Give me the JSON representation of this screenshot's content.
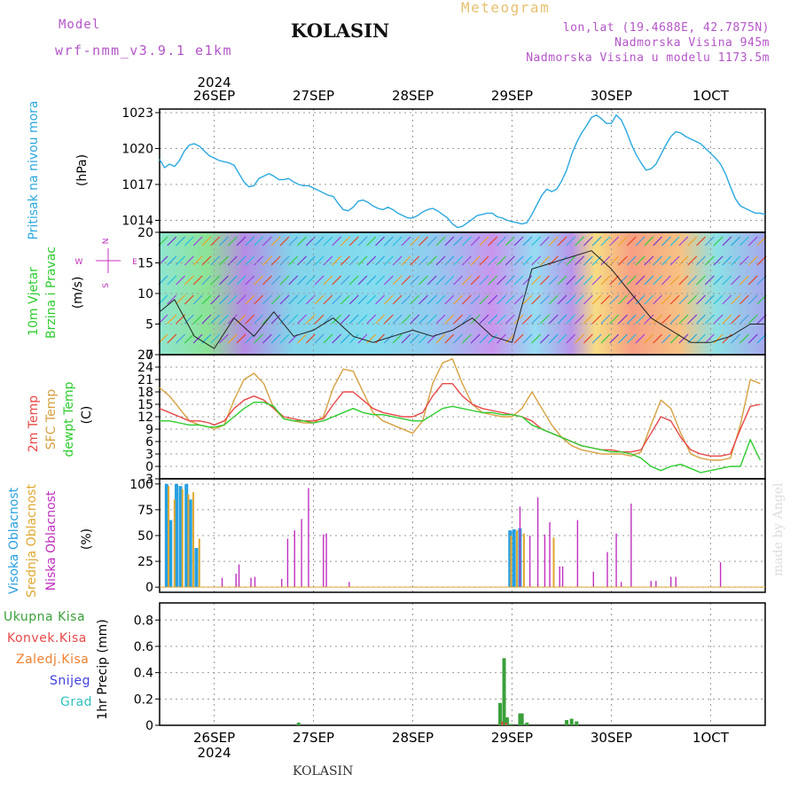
{
  "header": {
    "model_label": "Model",
    "model_value": "wrf-nmm_v3.9.1 e1km",
    "station": "KOLASIN",
    "title": "Meteogram",
    "location_lines": [
      "lon,lat (19.4688E, 42.7875N)",
      "Nadmorska Visina 945m",
      "Nadmorska Visina u modelu 1173.5m"
    ],
    "footer_station": "KOLASIN",
    "credit": "made by Angel"
  },
  "time_axis": {
    "year": "2024",
    "dates": [
      "26SEP",
      "27SEP",
      "28SEP",
      "29SEP",
      "30SEP",
      "1OCT"
    ]
  },
  "colors": {
    "pressure": "#2aa8e0",
    "temp2m": "#e84848",
    "sfc_temp": "#d6a040",
    "dewpt": "#2ecc2e",
    "high_cloud": "#28a0e0",
    "mid_cloud": "#e0a830",
    "low_cloud": "#c030c0",
    "total_precip": "#3aa03a",
    "conv_precip": "#e84848",
    "frz_precip": "#f08030",
    "snow": "#4040e0",
    "hail": "#30c0c0"
  },
  "panels": {
    "pressure": {
      "label": "Pritisak na nivou mora",
      "unit": "(hPa)"
    },
    "wind": {
      "label1": "10m Vjetar",
      "label2": "Brzina i Pravac",
      "unit": "(m/s)",
      "compass": [
        "N",
        "E",
        "S",
        "W"
      ]
    },
    "temp": {
      "label1": "2m Temp",
      "label2": "SFC Temp",
      "label3": "dewpt Temp",
      "unit": "(C)"
    },
    "cloud": {
      "label1": "Visoka Oblacnost",
      "label2": "Srednja Oblacnost",
      "label3": "Niska Oblacnost",
      "unit": "(%)"
    },
    "precip": {
      "legend": [
        "Ukupna Kisa",
        "Konvek.Kisa",
        "Zaledj.Kisa",
        "Snijeg",
        "Grad"
      ],
      "axis_label": "1hr Precip (mm)"
    }
  },
  "chart_data": [
    {
      "type": "line",
      "title": "Pritisak na nivou mora",
      "ylabel": "(hPa)",
      "ylim": [
        1013,
        1023.3
      ],
      "yticks": [
        1014,
        1017,
        1020,
        1023
      ],
      "x_unit": "day offset from 26SEP 00UTC",
      "x": [
        -0.55,
        -0.5,
        -0.45,
        -0.4,
        -0.35,
        -0.3,
        -0.25,
        -0.2,
        -0.15,
        -0.1,
        -0.05,
        0,
        0.05,
        0.1,
        0.15,
        0.2,
        0.25,
        0.3,
        0.35,
        0.4,
        0.45,
        0.5,
        0.55,
        0.6,
        0.65,
        0.7,
        0.75,
        0.8,
        0.85,
        0.9,
        0.95,
        1,
        1.05,
        1.1,
        1.15,
        1.2,
        1.25,
        1.3,
        1.35,
        1.4,
        1.45,
        1.5,
        1.55,
        1.6,
        1.65,
        1.7,
        1.75,
        1.8,
        1.85,
        1.9,
        1.95,
        2,
        2.05,
        2.1,
        2.15,
        2.2,
        2.25,
        2.3,
        2.35,
        2.4,
        2.45,
        2.5,
        2.55,
        2.6,
        2.65,
        2.7,
        2.75,
        2.8,
        2.85,
        2.9,
        2.95,
        3,
        3.05,
        3.1,
        3.15,
        3.2,
        3.25,
        3.3,
        3.35,
        3.4,
        3.45,
        3.5,
        3.55,
        3.6,
        3.65,
        3.7,
        3.75,
        3.8,
        3.85,
        3.9,
        3.95,
        4,
        4.05,
        4.1,
        4.15,
        4.2,
        4.25,
        4.3,
        4.35,
        4.4,
        4.45,
        4.5,
        4.55,
        4.6,
        4.65,
        4.7,
        4.75,
        4.8,
        4.85,
        4.9,
        4.95,
        5,
        5.05,
        5.1,
        5.15,
        5.2,
        5.25,
        5.3,
        5.35,
        5.4,
        5.45,
        5.5,
        5.55
      ],
      "series": [
        {
          "name": "Pritisak na nivou mora",
          "values": [
            1019.1,
            1018.4,
            1018.7,
            1018.5,
            1019.0,
            1019.8,
            1020.3,
            1020.4,
            1020.2,
            1019.8,
            1019.4,
            1019.2,
            1019.0,
            1018.9,
            1018.8,
            1018.6,
            1017.9,
            1017.2,
            1016.8,
            1016.9,
            1017.5,
            1017.7,
            1017.9,
            1017.7,
            1017.4,
            1017.4,
            1017.5,
            1017.2,
            1017.0,
            1016.9,
            1016.9,
            1016.7,
            1016.5,
            1016.3,
            1016.1,
            1016.0,
            1015.4,
            1014.9,
            1014.8,
            1015.1,
            1015.6,
            1015.7,
            1015.5,
            1015.2,
            1015.0,
            1014.9,
            1015.1,
            1014.9,
            1014.6,
            1014.4,
            1014.2,
            1014.2,
            1014.4,
            1014.7,
            1014.9,
            1015.0,
            1014.8,
            1014.5,
            1014.2,
            1013.7,
            1013.4,
            1013.5,
            1013.8,
            1014.1,
            1014.4,
            1014.5,
            1014.6,
            1014.6,
            1014.3,
            1014.2,
            1014.0,
            1013.9,
            1013.8,
            1013.7,
            1013.8,
            1014.5,
            1015.3,
            1016.1,
            1016.6,
            1016.4,
            1016.6,
            1017.3,
            1018.2,
            1019.5,
            1020.5,
            1021.3,
            1021.9,
            1022.6,
            1022.8,
            1022.5,
            1022.1,
            1022.1,
            1022.8,
            1022.4,
            1021.5,
            1020.4,
            1019.5,
            1018.8,
            1018.2,
            1018.3,
            1018.7,
            1019.5,
            1020.3,
            1021.0,
            1021.4,
            1021.3,
            1021.0,
            1020.8,
            1020.6,
            1020.4,
            1020.0,
            1019.6,
            1019.2,
            1018.7,
            1017.9,
            1016.8,
            1015.8,
            1015.2,
            1015.0,
            1014.8,
            1014.6,
            1014.6,
            1014.5
          ]
        }
      ]
    },
    {
      "type": "line",
      "title": "10m Vjetar Brzina i Pravac",
      "ylabel": "(m/s)",
      "ylim": [
        0,
        20
      ],
      "yticks": [
        0,
        5,
        10,
        15,
        20
      ],
      "x_unit": "day offset from 26SEP 00UTC",
      "x": [
        -0.55,
        -0.4,
        -0.2,
        0,
        0.2,
        0.4,
        0.6,
        0.8,
        1,
        1.2,
        1.4,
        1.6,
        1.8,
        2,
        2.2,
        2.4,
        2.6,
        2.8,
        3,
        3.2,
        3.4,
        3.6,
        3.8,
        4,
        4.2,
        4.4,
        4.6,
        4.8,
        5,
        5.2,
        5.4,
        5.55
      ],
      "series": [
        {
          "name": "10m Vjetar Brzina",
          "values": [
            7,
            9,
            3,
            1,
            6,
            3,
            7,
            3,
            4,
            6,
            3,
            2,
            3,
            4,
            3,
            4,
            6,
            3,
            2,
            14,
            15,
            16,
            17,
            14,
            10,
            6,
            4,
            2,
            2,
            3,
            5,
            5
          ]
        }
      ]
    },
    {
      "type": "line",
      "title": "2m Temp / SFC Temp / dewpt Temp",
      "ylabel": "(C)",
      "ylim": [
        -3,
        27
      ],
      "yticks": [
        -3,
        0,
        3,
        6,
        9,
        12,
        15,
        18,
        21,
        24,
        27
      ],
      "x_unit": "day offset from 26SEP 00UTC",
      "x": [
        -0.55,
        -0.45,
        -0.35,
        -0.25,
        -0.15,
        -0.05,
        0,
        0.1,
        0.2,
        0.3,
        0.4,
        0.5,
        0.6,
        0.7,
        0.8,
        0.9,
        1,
        1.1,
        1.2,
        1.3,
        1.4,
        1.5,
        1.6,
        1.7,
        1.8,
        1.9,
        2,
        2.1,
        2.2,
        2.3,
        2.4,
        2.5,
        2.6,
        2.7,
        2.8,
        2.9,
        3,
        3.1,
        3.2,
        3.3,
        3.4,
        3.5,
        3.6,
        3.7,
        3.8,
        3.9,
        4,
        4.1,
        4.2,
        4.3,
        4.4,
        4.5,
        4.6,
        4.7,
        4.8,
        4.9,
        5,
        5.1,
        5.2,
        5.3,
        5.4,
        5.5
      ],
      "series": [
        {
          "name": "2m Temp",
          "values": [
            14,
            13,
            12,
            11,
            11,
            10.5,
            10,
            11,
            14,
            16,
            17,
            16,
            14,
            12,
            11.5,
            11,
            11,
            11.5,
            15,
            18,
            18,
            16,
            14,
            13,
            12.5,
            12,
            12,
            13,
            17,
            20,
            20,
            17,
            15,
            14,
            13.5,
            13,
            12.5,
            12,
            11,
            9,
            8,
            7,
            6,
            5,
            4.5,
            4,
            4,
            3.5,
            3.5,
            4,
            8,
            12,
            11,
            7,
            4,
            3,
            2.5,
            2.5,
            3,
            9,
            14.5,
            15
          ]
        },
        {
          "name": "SFC Temp",
          "values": [
            19,
            17,
            14,
            11,
            10,
            9.5,
            9,
            10,
            16,
            21,
            22.5,
            20,
            14,
            11.5,
            11,
            10.5,
            10.5,
            12,
            19,
            23.5,
            23,
            18,
            13,
            11,
            10,
            9,
            8,
            11,
            20,
            25,
            26,
            20,
            15,
            13,
            12.5,
            12,
            12,
            14,
            18,
            14,
            10,
            7,
            5,
            4,
            3.5,
            3,
            3,
            3,
            2.5,
            3.5,
            10,
            16,
            14,
            8,
            3,
            2,
            1.5,
            1.5,
            2,
            10,
            21,
            20
          ]
        },
        {
          "name": "dewpt Temp",
          "values": [
            11,
            11,
            10.5,
            10,
            10,
            9.5,
            9.5,
            10,
            12,
            14,
            15.5,
            15.5,
            14.5,
            11.5,
            11,
            11,
            10.5,
            11,
            12,
            13,
            14,
            13,
            12.5,
            12.5,
            12,
            11.5,
            11,
            11,
            12.5,
            14,
            14.5,
            14,
            13.5,
            13,
            13,
            12.5,
            12.5,
            12,
            10,
            9,
            8,
            7,
            6,
            5,
            4.5,
            4,
            3.5,
            3.5,
            3,
            2,
            0,
            -1,
            0,
            0.5,
            -0.5,
            -1.5,
            -1,
            -0.5,
            0,
            0,
            6.5,
            1.5
          ]
        }
      ]
    },
    {
      "type": "bar",
      "title": "Visoka / Srednja / Niska Oblacnost",
      "ylabel": "(%)",
      "ylim": [
        0,
        100
      ],
      "yticks": [
        0,
        25,
        50,
        75,
        100
      ],
      "x_unit": "day offset from 26SEP 00UTC",
      "series": [
        {
          "name": "Visoka Oblacnost",
          "x": [
            -0.48,
            -0.44,
            -0.38,
            -0.34,
            -0.28,
            -0.24,
            -0.18,
            2.98,
            3.02,
            3.08
          ],
          "values": [
            100,
            65,
            100,
            98,
            100,
            85,
            38,
            55,
            56,
            57
          ]
        },
        {
          "name": "Srednja Oblacnost",
          "x": [
            -0.46,
            -0.4,
            -0.32,
            -0.26,
            -0.21,
            -0.15,
            2.99,
            3.05,
            3.12,
            3.42
          ],
          "values": [
            98,
            85,
            95,
            90,
            92,
            47,
            50,
            55,
            52,
            48
          ]
        },
        {
          "name": "Niska Oblacnost",
          "x": [
            0.08,
            0.22,
            0.25,
            0.37,
            0.41,
            0.68,
            0.74,
            0.81,
            0.88,
            0.95,
            1.1,
            1.13,
            1.36,
            3.08,
            3.18,
            3.26,
            3.33,
            3.38,
            3.48,
            3.51,
            3.66,
            3.82,
            3.96,
            4.05,
            4.1,
            4.2,
            4.4,
            4.45,
            4.6,
            4.65,
            5.1
          ],
          "values": [
            9,
            13,
            22,
            9,
            10,
            8,
            47,
            55,
            66,
            96,
            51,
            52,
            5,
            78,
            50,
            87,
            51,
            63,
            20,
            20,
            65,
            15,
            34,
            52,
            5,
            81,
            6,
            6,
            10,
            10,
            24
          ]
        }
      ]
    },
    {
      "type": "bar",
      "title": "1hr Precip",
      "ylabel": "1hr Precip (mm)",
      "ylim": [
        0,
        0.9
      ],
      "yticks": [
        0,
        0.2,
        0.4,
        0.6,
        0.8
      ],
      "x_unit": "day offset from 26SEP 00UTC",
      "series": [
        {
          "name": "Ukupna Kisa",
          "x": [
            0.85,
            2.88,
            2.92,
            2.95,
            2.99,
            3.08,
            3.1,
            3.15,
            3.55,
            3.6,
            3.65
          ],
          "values": [
            0.02,
            0.17,
            0.51,
            0.06,
            0.01,
            0.09,
            0.09,
            0.02,
            0.04,
            0.05,
            0.03
          ]
        },
        {
          "name": "Konvek.Kisa",
          "x": [
            2.9,
            2.94
          ],
          "values": [
            0.03,
            0.02
          ]
        }
      ]
    }
  ]
}
